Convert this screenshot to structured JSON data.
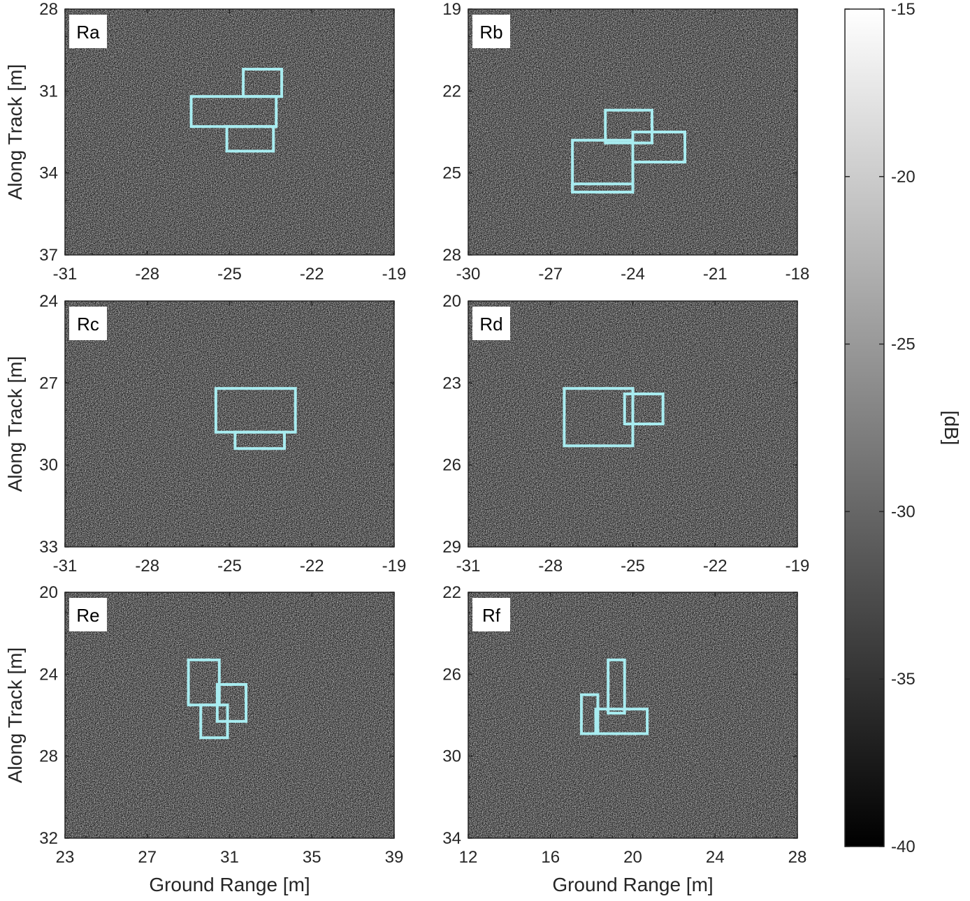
{
  "colors": {
    "roi_box": "#a8ecf0",
    "frame": "#262626"
  },
  "chart_data": [
    {
      "type": "heatmap",
      "panel": "Ra",
      "xlabel": "",
      "ylabel": "Along Track [m]",
      "xlim": [
        -31,
        -19
      ],
      "ylim": [
        28,
        37
      ],
      "y_reversed": true,
      "xticks": [
        -31,
        -28,
        -25,
        -22,
        -19
      ],
      "yticks": [
        28,
        31,
        34,
        37
      ],
      "roi_boxes": [
        {
          "x0": -24.5,
          "x1": -23.1,
          "y0": 30.2,
          "y1": 31.2
        },
        {
          "x0": -26.4,
          "x1": -23.3,
          "y0": 31.2,
          "y1": 32.3
        },
        {
          "x0": -25.1,
          "x1": -23.4,
          "y0": 32.3,
          "y1": 33.2
        }
      ]
    },
    {
      "type": "heatmap",
      "panel": "Rb",
      "xlabel": "",
      "ylabel": "",
      "xlim": [
        -30,
        -18
      ],
      "ylim": [
        19,
        28
      ],
      "y_reversed": true,
      "xticks": [
        -30,
        -27,
        -24,
        -21,
        -18
      ],
      "yticks": [
        19,
        22,
        25,
        28
      ],
      "roi_boxes": [
        {
          "x0": -25.0,
          "x1": -23.3,
          "y0": 22.7,
          "y1": 23.9
        },
        {
          "x0": -24.0,
          "x1": -22.1,
          "y0": 23.5,
          "y1": 24.6
        },
        {
          "x0": -26.2,
          "x1": -24.0,
          "y0": 23.8,
          "y1": 25.7
        },
        {
          "x0": -26.2,
          "x1": -24.0,
          "y0": 25.4,
          "y1": 25.7
        }
      ]
    },
    {
      "type": "heatmap",
      "panel": "Rc",
      "xlabel": "",
      "ylabel": "Along Track [m]",
      "xlim": [
        -31,
        -19
      ],
      "ylim": [
        24,
        33
      ],
      "y_reversed": true,
      "xticks": [
        -31,
        -28,
        -25,
        -22,
        -19
      ],
      "yticks": [
        24,
        27,
        30,
        33
      ],
      "roi_boxes": [
        {
          "x0": -25.5,
          "x1": -22.6,
          "y0": 27.2,
          "y1": 28.8
        },
        {
          "x0": -24.8,
          "x1": -23.0,
          "y0": 28.8,
          "y1": 29.4
        }
      ]
    },
    {
      "type": "heatmap",
      "panel": "Rd",
      "xlabel": "",
      "ylabel": "",
      "xlim": [
        -31,
        -19
      ],
      "ylim": [
        20,
        29
      ],
      "y_reversed": true,
      "xticks": [
        -31,
        -28,
        -25,
        -22,
        -19
      ],
      "yticks": [
        20,
        23,
        26,
        29
      ],
      "roi_boxes": [
        {
          "x0": -27.5,
          "x1": -25.0,
          "y0": 23.2,
          "y1": 25.3
        },
        {
          "x0": -25.3,
          "x1": -23.9,
          "y0": 23.4,
          "y1": 24.5
        }
      ]
    },
    {
      "type": "heatmap",
      "panel": "Re",
      "xlabel": "Ground Range [m]",
      "ylabel": "Along Track [m]",
      "xlim": [
        23,
        39
      ],
      "ylim": [
        20,
        32
      ],
      "y_reversed": true,
      "xticks": [
        23,
        27,
        31,
        35,
        39
      ],
      "yticks": [
        20,
        24,
        28,
        32
      ],
      "roi_boxes": [
        {
          "x0": 29.0,
          "x1": 30.5,
          "y0": 23.3,
          "y1": 25.5
        },
        {
          "x0": 30.4,
          "x1": 31.8,
          "y0": 24.5,
          "y1": 26.3
        },
        {
          "x0": 29.6,
          "x1": 30.9,
          "y0": 25.5,
          "y1": 27.1
        }
      ]
    },
    {
      "type": "heatmap",
      "panel": "Rf",
      "xlabel": "Ground Range [m]",
      "ylabel": "",
      "xlim": [
        12,
        28
      ],
      "ylim": [
        22,
        34
      ],
      "y_reversed": true,
      "xticks": [
        12,
        16,
        20,
        24,
        28
      ],
      "yticks": [
        22,
        26,
        30,
        34
      ],
      "roi_boxes": [
        {
          "x0": 18.8,
          "x1": 19.6,
          "y0": 25.3,
          "y1": 27.9
        },
        {
          "x0": 17.5,
          "x1": 18.3,
          "y0": 27.0,
          "y1": 28.9
        },
        {
          "x0": 18.2,
          "x1": 20.7,
          "y0": 27.7,
          "y1": 28.9
        }
      ]
    }
  ],
  "colorbar": {
    "label": "[dB]",
    "range": [
      -40,
      -15
    ],
    "ticks": [
      -15,
      -20,
      -25,
      -30,
      -35,
      -40
    ],
    "colormap": "gray"
  }
}
